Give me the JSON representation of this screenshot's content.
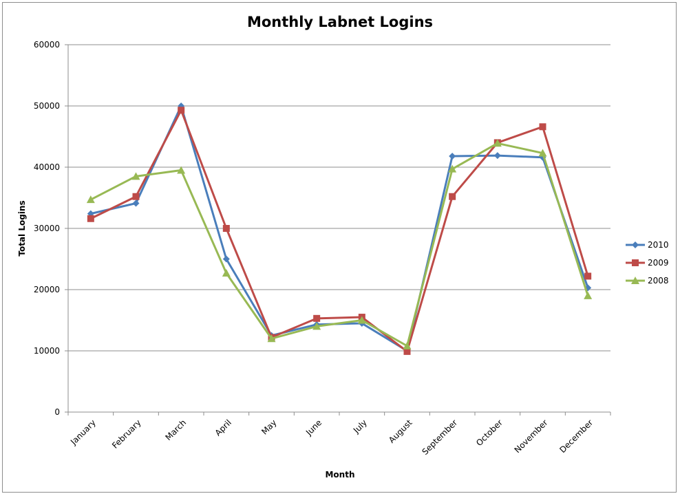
{
  "chart_data": {
    "type": "line",
    "title": "Monthly Labnet Logins",
    "xlabel": "Month",
    "ylabel": "Total Logins",
    "categories": [
      "January",
      "February",
      "March",
      "April",
      "May",
      "June",
      "July",
      "August",
      "September",
      "October",
      "November",
      "December"
    ],
    "yticks": [
      "0",
      "10000",
      "20000",
      "30000",
      "40000",
      "50000",
      "60000"
    ],
    "ylim": [
      0,
      60000
    ],
    "grid": true,
    "legend_position": "right",
    "series": [
      {
        "name": "2010",
        "color": "#4a7ebb",
        "marker": "diamond",
        "values": [
          32400,
          34100,
          50000,
          25000,
          12500,
          14300,
          14500,
          10000,
          41800,
          41900,
          41600,
          20300
        ]
      },
      {
        "name": "2009",
        "color": "#be4b48",
        "marker": "square",
        "values": [
          31600,
          35200,
          49300,
          30000,
          12200,
          15300,
          15500,
          9900,
          35200,
          44000,
          46600,
          22200
        ]
      },
      {
        "name": "2008",
        "color": "#98b954",
        "marker": "triangle",
        "values": [
          34700,
          38500,
          39500,
          22700,
          12000,
          14000,
          15000,
          10800,
          39700,
          43900,
          42300,
          19000
        ]
      }
    ]
  }
}
